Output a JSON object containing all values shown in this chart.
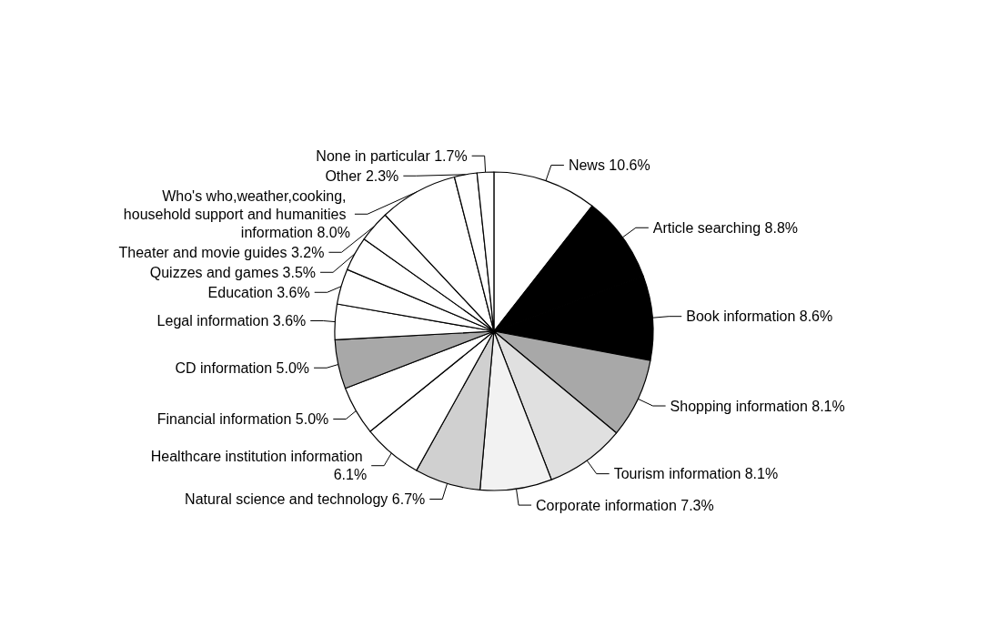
{
  "chart_data": {
    "type": "pie",
    "categories": [
      "News",
      "Article searching",
      "Book information",
      "Shopping information",
      "Tourism information",
      "Corporate information",
      "Natural science and technology",
      "Healthcare institution information",
      "Financial information",
      "CD information",
      "Legal information",
      "Education",
      "Quizzes and games",
      "Theater and movie guides",
      "Who's who,weather,cooking, household support and humanities information",
      "Other",
      "None in particular"
    ],
    "values": [
      10.6,
      8.8,
      8.6,
      8.1,
      8.1,
      7.3,
      6.7,
      6.1,
      5.0,
      5.0,
      3.6,
      3.6,
      3.5,
      3.2,
      8.0,
      2.3,
      1.7
    ],
    "value_labels": [
      "10.6%",
      "8.8%",
      "8.6%",
      "8.1%",
      "8.1%",
      "7.3%",
      "6.7%",
      "6.1%",
      "5.0%",
      "5.0%",
      "3.6%",
      "3.6%",
      "3.5%",
      "3.2%",
      "8.0%",
      "2.3%",
      "1.7%"
    ],
    "colors": [
      "#ffffff",
      "#000000",
      "#000000",
      "#a8a8a8",
      "#e0e0e0",
      "#f2f2f2",
      "#d0d0d0",
      "#ffffff",
      "#ffffff",
      "#a8a8a8",
      "#ffffff",
      "#ffffff",
      "#ffffff",
      "#ffffff",
      "#ffffff",
      "#ffffff",
      "#ffffff"
    ],
    "legend": false
  }
}
